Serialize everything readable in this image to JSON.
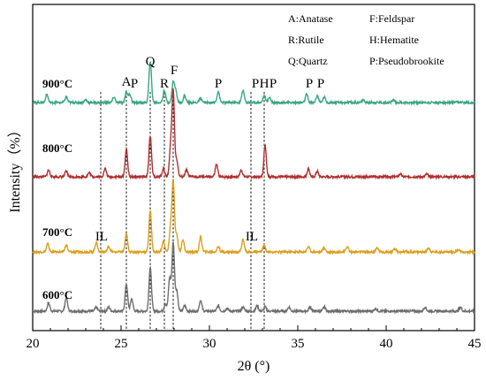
{
  "chart_data": {
    "type": "line",
    "xlabel": "2θ (°)",
    "ylabel": "Intensity（%）",
    "xlim": [
      20,
      45
    ],
    "xticks": [
      "20",
      "25",
      "30",
      "35",
      "40",
      "45"
    ],
    "legend": [
      "A:Anatase",
      "R:Rutile",
      "Q:Quartz",
      "F:Feldspar",
      "H:Hematite",
      "P:Pseudobrookite"
    ],
    "series": [
      {
        "name": "600°C",
        "color": "#6e6e6e",
        "baseline": 0,
        "peaks": [
          [
            20.9,
            6
          ],
          [
            21.9,
            10
          ],
          [
            23.6,
            3
          ],
          [
            24.3,
            3
          ],
          [
            25.3,
            20
          ],
          [
            25.6,
            9
          ],
          [
            26.65,
            32
          ],
          [
            27.5,
            5
          ],
          [
            27.75,
            24
          ],
          [
            27.95,
            50
          ],
          [
            28.15,
            15
          ],
          [
            28.6,
            4
          ],
          [
            29.5,
            8
          ],
          [
            30.5,
            4
          ],
          [
            31.0,
            2
          ],
          [
            31.9,
            3
          ],
          [
            32.7,
            4
          ],
          [
            33.15,
            3
          ],
          [
            34.5,
            3
          ],
          [
            35.7,
            3
          ],
          [
            36.5,
            3
          ],
          [
            39.4,
            2
          ],
          [
            42.2,
            3
          ],
          [
            44.2,
            3
          ]
        ]
      },
      {
        "name": "700°C",
        "color": "#d9a020",
        "baseline": 1,
        "peaks": [
          [
            20.85,
            6
          ],
          [
            21.9,
            5
          ],
          [
            23.6,
            7
          ],
          [
            24.3,
            4
          ],
          [
            25.3,
            13
          ],
          [
            26.65,
            30
          ],
          [
            27.4,
            8
          ],
          [
            27.8,
            17
          ],
          [
            27.95,
            51
          ],
          [
            28.15,
            12
          ],
          [
            28.5,
            9
          ],
          [
            29.5,
            11
          ],
          [
            30.5,
            4
          ],
          [
            31.9,
            9
          ],
          [
            33.1,
            5
          ],
          [
            35.6,
            4
          ],
          [
            36.5,
            3
          ],
          [
            37.8,
            4
          ],
          [
            39.5,
            3
          ],
          [
            40.5,
            2
          ],
          [
            42.4,
            3
          ],
          [
            44.1,
            2
          ]
        ]
      },
      {
        "name": "800°C",
        "color": "#b03030",
        "baseline": 2,
        "peaks": [
          [
            20.9,
            5
          ],
          [
            21.9,
            4
          ],
          [
            23.2,
            3
          ],
          [
            24.1,
            6
          ],
          [
            25.3,
            20
          ],
          [
            26.65,
            30
          ],
          [
            27.4,
            6
          ],
          [
            27.8,
            20
          ],
          [
            27.95,
            62
          ],
          [
            28.15,
            12
          ],
          [
            28.7,
            5
          ],
          [
            30.4,
            9
          ],
          [
            31.8,
            5
          ],
          [
            33.15,
            23
          ],
          [
            35.6,
            6
          ],
          [
            36.1,
            4
          ],
          [
            40.8,
            2
          ],
          [
            42.3,
            2
          ]
        ]
      },
      {
        "name": "900°C",
        "color": "#3aa683",
        "baseline": 3,
        "peaks": [
          [
            20.8,
            6
          ],
          [
            21.9,
            4
          ],
          [
            23.0,
            2
          ],
          [
            24.6,
            4
          ],
          [
            25.3,
            8
          ],
          [
            25.5,
            6
          ],
          [
            26.65,
            30
          ],
          [
            27.45,
            9
          ],
          [
            27.95,
            15
          ],
          [
            28.1,
            8
          ],
          [
            28.6,
            5
          ],
          [
            29.5,
            3
          ],
          [
            30.5,
            8
          ],
          [
            31.9,
            9
          ],
          [
            33.1,
            5
          ],
          [
            33.4,
            4
          ],
          [
            35.5,
            6
          ],
          [
            36.1,
            5
          ],
          [
            36.5,
            4
          ],
          [
            38.7,
            2
          ],
          [
            40.4,
            2
          ]
        ]
      }
    ],
    "temperature_labels": [
      "600°C",
      "700°C",
      "800°C",
      "900°C"
    ],
    "phase_marks": [
      {
        "text": "IL",
        "x": 23.9,
        "series": "700°C"
      },
      {
        "text": "IL",
        "x": 32.4,
        "series": "700°C"
      },
      {
        "text": "A",
        "x": 25.3,
        "series": "900°C"
      },
      {
        "text": "P",
        "x": 25.75,
        "series": "900°C"
      },
      {
        "text": "Q",
        "x": 26.65,
        "series": "900°C"
      },
      {
        "text": "R",
        "x": 27.45,
        "series": "900°C"
      },
      {
        "text": "F",
        "x": 28.0,
        "series": "900°C"
      },
      {
        "text": "P",
        "x": 30.5,
        "series": "900°C"
      },
      {
        "text": "P",
        "x": 32.6,
        "series": "900°C"
      },
      {
        "text": "H",
        "x": 33.1,
        "series": "900°C"
      },
      {
        "text": "P",
        "x": 33.6,
        "series": "900°C"
      },
      {
        "text": "P",
        "x": 35.65,
        "series": "900°C"
      },
      {
        "text": "P",
        "x": 36.3,
        "series": "900°C"
      }
    ],
    "reference_lines_x": [
      23.85,
      25.3,
      26.65,
      27.45,
      27.95,
      32.35,
      33.1
    ]
  }
}
